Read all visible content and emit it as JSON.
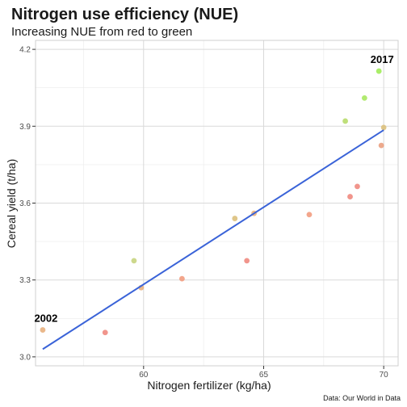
{
  "chart_data": {
    "type": "scatter",
    "title": "Nitrogen use efficiency (NUE)",
    "subtitle": "Increasing NUE from red to green",
    "xlabel": "Nitrogen fertilizer (kg/ha)",
    "ylabel": "Cereal yield (t/ha)",
    "caption": "Data: Our World in Data",
    "xlim": [
      55.5,
      70.6
    ],
    "ylim": [
      2.965,
      4.235
    ],
    "x_ticks": [
      60,
      65,
      70
    ],
    "y_ticks": [
      3.0,
      3.3,
      3.6,
      3.9,
      4.2
    ],
    "x_tick_labels": [
      "60",
      "65",
      "70"
    ],
    "y_tick_labels": [
      "3.0",
      "3.3",
      "3.6",
      "3.9",
      "4.2"
    ],
    "grid": true,
    "points": [
      {
        "x": 55.8,
        "y": 3.105,
        "color": "#e8b07e"
      },
      {
        "x": 58.4,
        "y": 3.095,
        "color": "#f08a80"
      },
      {
        "x": 59.6,
        "y": 3.375,
        "color": "#c8d480"
      },
      {
        "x": 59.9,
        "y": 3.27,
        "color": "#e8b07e"
      },
      {
        "x": 61.6,
        "y": 3.305,
        "color": "#f29c80"
      },
      {
        "x": 63.8,
        "y": 3.54,
        "color": "#dcc07c"
      },
      {
        "x": 64.3,
        "y": 3.375,
        "color": "#f08a80"
      },
      {
        "x": 64.6,
        "y": 3.56,
        "color": "#e8b07e"
      },
      {
        "x": 66.9,
        "y": 3.555,
        "color": "#f29c80"
      },
      {
        "x": 68.4,
        "y": 3.92,
        "color": "#b8dc6c"
      },
      {
        "x": 68.6,
        "y": 3.625,
        "color": "#f08a80"
      },
      {
        "x": 68.9,
        "y": 3.665,
        "color": "#f08a80"
      },
      {
        "x": 69.2,
        "y": 4.01,
        "color": "#a8e860"
      },
      {
        "x": 69.8,
        "y": 4.115,
        "color": "#a0ec58"
      },
      {
        "x": 69.9,
        "y": 3.825,
        "color": "#eaa080"
      },
      {
        "x": 70.0,
        "y": 3.895,
        "color": "#dcc07c"
      }
    ],
    "trend_line": {
      "x": [
        55.8,
        70.0
      ],
      "y": [
        3.03,
        3.885
      ],
      "color": "#3a63d8"
    },
    "annotations": [
      {
        "label": "2002",
        "x": 55.8,
        "y": 3.105
      },
      {
        "label": "2017",
        "x": 69.8,
        "y": 4.115
      }
    ]
  }
}
